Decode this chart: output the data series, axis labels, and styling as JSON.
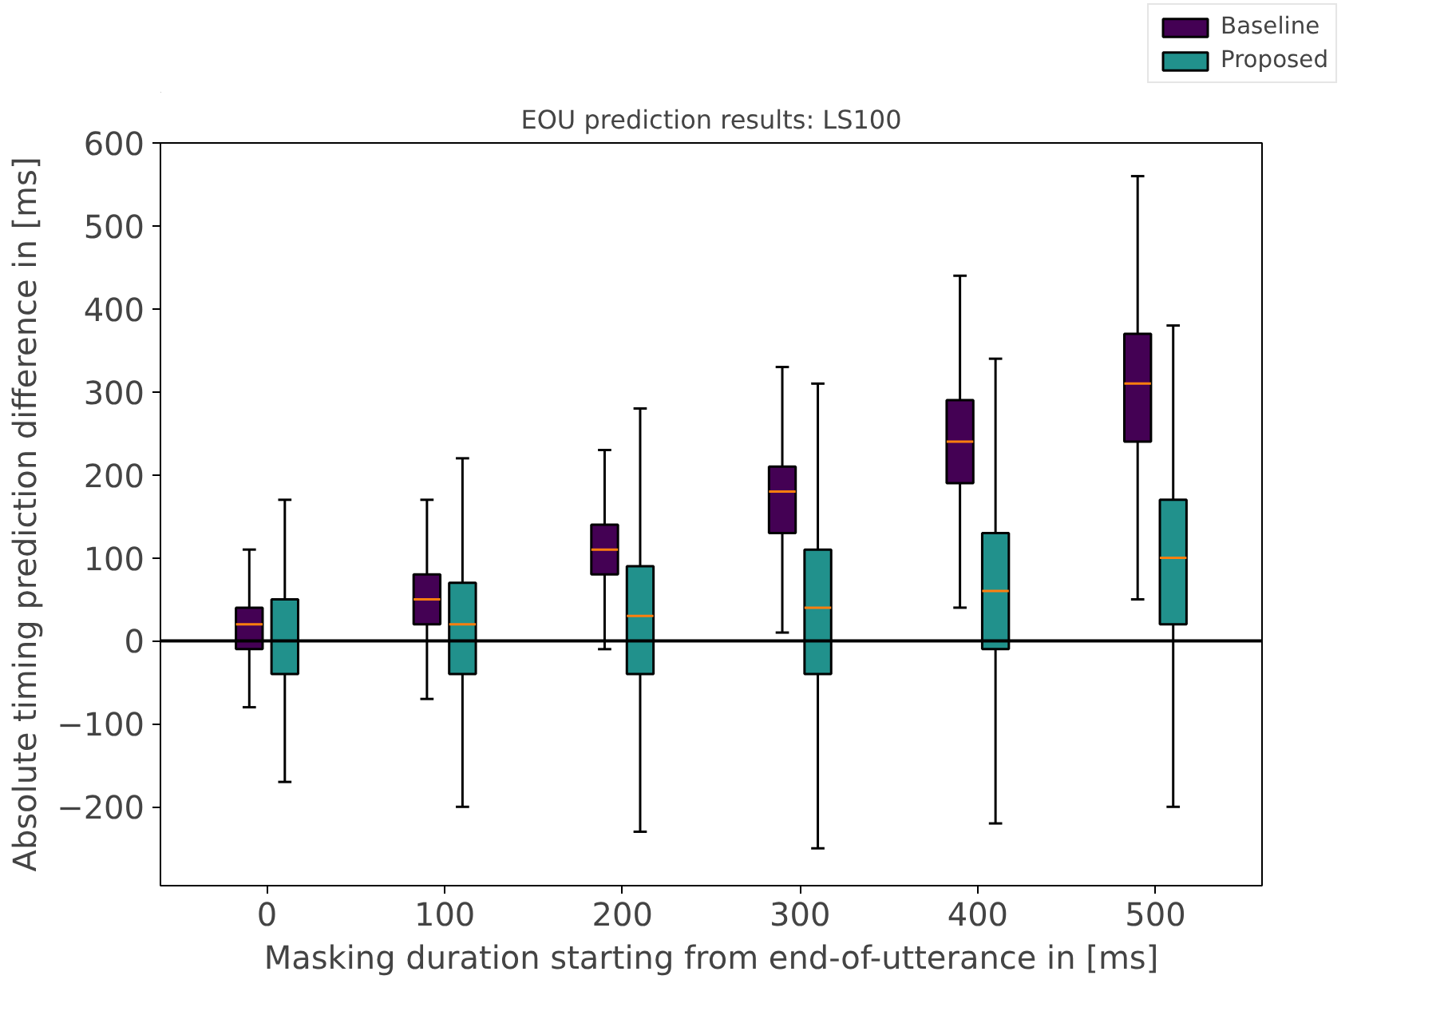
{
  "chart_data": {
    "type": "box",
    "title": "EOU prediction results: LS100",
    "xlabel": "Masking duration starting from end-of-utterance in [ms]",
    "ylabel": "Absolute timing prediction difference in [ms]",
    "x": [
      0,
      100,
      200,
      300,
      400,
      500
    ],
    "xlim": [
      -60,
      560
    ],
    "xticks": [
      0,
      100,
      200,
      300,
      400,
      500
    ],
    "ylim": [
      -295,
      600
    ],
    "yticks": [
      {
        "value": -200,
        "label": "−200"
      },
      {
        "value": -100,
        "label": "−100"
      },
      0,
      100,
      200,
      300,
      400,
      500,
      600
    ],
    "series": [
      {
        "name": "Baseline",
        "color": "#440154",
        "boxes": [
          {
            "low": -80,
            "q1": -10,
            "median": 20,
            "q3": 40,
            "high": 110
          },
          {
            "low": -70,
            "q1": 20,
            "median": 50,
            "q3": 80,
            "high": 170
          },
          {
            "low": -10,
            "q1": 80,
            "median": 110,
            "q3": 140,
            "high": 230
          },
          {
            "low": 10,
            "q1": 130,
            "median": 180,
            "q3": 210,
            "high": 330
          },
          {
            "low": 40,
            "q1": 190,
            "median": 240,
            "q3": 290,
            "high": 440
          },
          {
            "low": 50,
            "q1": 240,
            "median": 310,
            "q3": 370,
            "high": 560
          }
        ]
      },
      {
        "name": "Proposed",
        "color": "#21918c",
        "boxes": [
          {
            "low": -170,
            "q1": -40,
            "median": 0,
            "q3": 50,
            "high": 170
          },
          {
            "low": -200,
            "q1": -40,
            "median": 20,
            "q3": 70,
            "high": 220
          },
          {
            "low": -230,
            "q1": -40,
            "median": 30,
            "q3": 90,
            "high": 280
          },
          {
            "low": -250,
            "q1": -40,
            "median": 40,
            "q3": 110,
            "high": 310
          },
          {
            "low": -220,
            "q1": -10,
            "median": 60,
            "q3": 130,
            "high": 340
          },
          {
            "low": -200,
            "q1": 20,
            "median": 100,
            "q3": 170,
            "high": 380
          }
        ]
      }
    ],
    "ref_lines": [
      {
        "axis": "y",
        "value": 0,
        "color": "#000000"
      }
    ],
    "grid": false,
    "legend": "top right"
  }
}
